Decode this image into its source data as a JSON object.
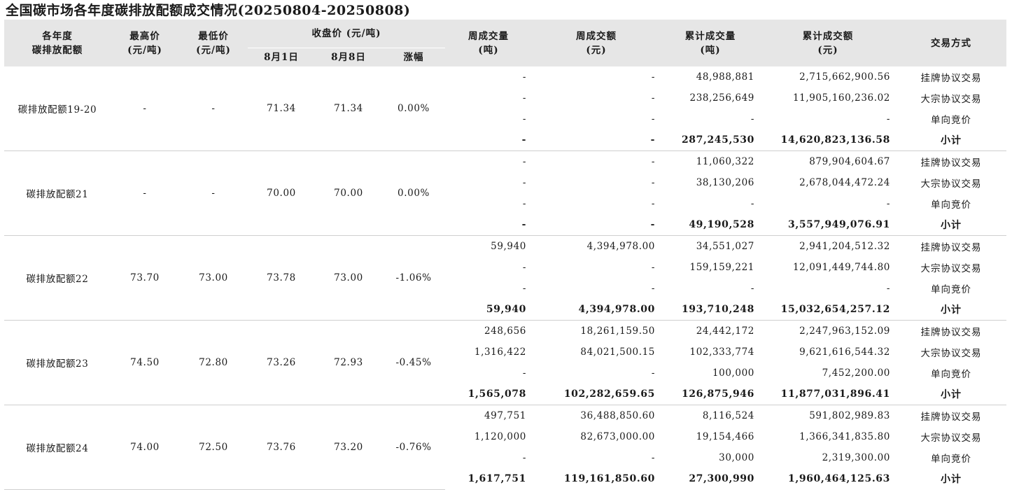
{
  "title": "全国碳市场各年度碳排放配额成交情况(20250804-20250808)",
  "header": {
    "col_name_1": "各年度",
    "col_name_2": "碳排放配额",
    "col_high_1": "最高价",
    "col_high_2": "(元/吨)",
    "col_low_1": "最低价",
    "col_low_2": "(元/吨)",
    "col_close": "收盘价 (元/吨)",
    "col_close_d1": "8月1日",
    "col_close_d2": "8月8日",
    "col_change": "涨幅",
    "col_wvol_1": "周成交量",
    "col_wvol_2": "(吨)",
    "col_wamt_1": "周成交额",
    "col_wamt_2": "(元)",
    "col_cvol_1": "累计成交量",
    "col_cvol_2": "(吨)",
    "col_camt_1": "累计成交额",
    "col_camt_2": "(元)",
    "col_mode": "交易方式"
  },
  "groups": [
    {
      "name": "碳排放配额19-20",
      "high": "-",
      "low": "-",
      "close_d1": "71.34",
      "close_d2": "71.34",
      "change": "0.00%",
      "rows": [
        {
          "wvol": "-",
          "wamt": "-",
          "cvol": "48,988,881",
          "camt": "2,715,662,900.56",
          "mode": "挂牌协议交易"
        },
        {
          "wvol": "-",
          "wamt": "-",
          "cvol": "238,256,649",
          "camt": "11,905,160,236.02",
          "mode": "大宗协议交易"
        },
        {
          "wvol": "-",
          "wamt": "-",
          "cvol": "-",
          "camt": "-",
          "mode": "单向竞价"
        },
        {
          "wvol": "-",
          "wamt": "-",
          "cvol": "287,245,530",
          "camt": "14,620,823,136.58",
          "mode": "小计"
        }
      ]
    },
    {
      "name": "碳排放配额21",
      "high": "-",
      "low": "-",
      "close_d1": "70.00",
      "close_d2": "70.00",
      "change": "0.00%",
      "rows": [
        {
          "wvol": "-",
          "wamt": "-",
          "cvol": "11,060,322",
          "camt": "879,904,604.67",
          "mode": "挂牌协议交易"
        },
        {
          "wvol": "-",
          "wamt": "-",
          "cvol": "38,130,206",
          "camt": "2,678,044,472.24",
          "mode": "大宗协议交易"
        },
        {
          "wvol": "-",
          "wamt": "-",
          "cvol": "-",
          "camt": "-",
          "mode": "单向竞价"
        },
        {
          "wvol": "-",
          "wamt": "-",
          "cvol": "49,190,528",
          "camt": "3,557,949,076.91",
          "mode": "小计"
        }
      ]
    },
    {
      "name": "碳排放配额22",
      "high": "73.70",
      "low": "73.00",
      "close_d1": "73.78",
      "close_d2": "73.00",
      "change": "-1.06%",
      "rows": [
        {
          "wvol": "59,940",
          "wamt": "4,394,978.00",
          "cvol": "34,551,027",
          "camt": "2,941,204,512.32",
          "mode": "挂牌协议交易"
        },
        {
          "wvol": "-",
          "wamt": "-",
          "cvol": "159,159,221",
          "camt": "12,091,449,744.80",
          "mode": "大宗协议交易"
        },
        {
          "wvol": "-",
          "wamt": "-",
          "cvol": "-",
          "camt": "-",
          "mode": "单向竞价"
        },
        {
          "wvol": "59,940",
          "wamt": "4,394,978.00",
          "cvol": "193,710,248",
          "camt": "15,032,654,257.12",
          "mode": "小计"
        }
      ]
    },
    {
      "name": "碳排放配额23",
      "high": "74.50",
      "low": "72.80",
      "close_d1": "73.26",
      "close_d2": "72.93",
      "change": "-0.45%",
      "rows": [
        {
          "wvol": "248,656",
          "wamt": "18,261,159.50",
          "cvol": "24,442,172",
          "camt": "2,247,963,152.09",
          "mode": "挂牌协议交易"
        },
        {
          "wvol": "1,316,422",
          "wamt": "84,021,500.15",
          "cvol": "102,333,774",
          "camt": "9,621,616,544.32",
          "mode": "大宗协议交易"
        },
        {
          "wvol": "-",
          "wamt": "-",
          "cvol": "100,000",
          "camt": "7,452,200.00",
          "mode": "单向竞价"
        },
        {
          "wvol": "1,565,078",
          "wamt": "102,282,659.65",
          "cvol": "126,875,946",
          "camt": "11,877,031,896.41",
          "mode": "小计"
        }
      ]
    },
    {
      "name": "碳排放配额24",
      "high": "74.00",
      "low": "72.50",
      "close_d1": "73.76",
      "close_d2": "73.20",
      "change": "-0.76%",
      "rows": [
        {
          "wvol": "497,751",
          "wamt": "36,488,850.60",
          "cvol": "8,116,524",
          "camt": "591,802,989.83",
          "mode": "挂牌协议交易"
        },
        {
          "wvol": "1,120,000",
          "wamt": "82,673,000.00",
          "cvol": "19,154,466",
          "camt": "1,366,341,835.80",
          "mode": "大宗协议交易"
        },
        {
          "wvol": "-",
          "wamt": "-",
          "cvol": "30,000",
          "camt": "2,319,300.00",
          "mode": "单向竞价"
        },
        {
          "wvol": "1,617,751",
          "wamt": "119,161,850.60",
          "cvol": "27,300,990",
          "camt": "1,960,464,125.63",
          "mode": "小计"
        }
      ]
    }
  ]
}
